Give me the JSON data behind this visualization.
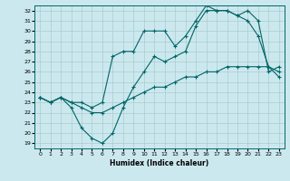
{
  "xlabel": "Humidex (Indice chaleur)",
  "bg_color": "#cce8ef",
  "grid_color": "#aacccc",
  "line_color": "#006666",
  "xlim": [
    -0.5,
    23.5
  ],
  "ylim": [
    18.5,
    32.5
  ],
  "xticks": [
    0,
    1,
    2,
    3,
    4,
    5,
    6,
    7,
    8,
    9,
    10,
    11,
    12,
    13,
    14,
    15,
    16,
    17,
    18,
    19,
    20,
    21,
    22,
    23
  ],
  "yticks": [
    19,
    20,
    21,
    22,
    23,
    24,
    25,
    26,
    27,
    28,
    29,
    30,
    31,
    32
  ],
  "series": [
    {
      "x": [
        0,
        1,
        2,
        3,
        4,
        5,
        6,
        7,
        8,
        9,
        10,
        11,
        12,
        13,
        14,
        15,
        16,
        17,
        18,
        19,
        20,
        21,
        22,
        23
      ],
      "y": [
        23.5,
        23.0,
        23.5,
        23.0,
        22.5,
        22.0,
        22.0,
        22.5,
        23.0,
        23.5,
        24.0,
        24.5,
        24.5,
        25.0,
        25.5,
        25.5,
        26.0,
        26.0,
        26.5,
        26.5,
        26.5,
        26.5,
        26.5,
        26.0
      ]
    },
    {
      "x": [
        0,
        1,
        2,
        3,
        4,
        5,
        6,
        7,
        8,
        9,
        10,
        11,
        12,
        13,
        14,
        15,
        16,
        17,
        18,
        19,
        20,
        21,
        22,
        23
      ],
      "y": [
        23.5,
        23.0,
        23.5,
        22.5,
        20.5,
        19.5,
        19.0,
        20.0,
        22.5,
        24.5,
        26.0,
        27.5,
        27.0,
        27.5,
        28.0,
        30.5,
        32.0,
        32.0,
        32.0,
        31.5,
        31.0,
        29.5,
        26.5,
        25.5
      ]
    },
    {
      "x": [
        0,
        1,
        2,
        3,
        4,
        5,
        6,
        7,
        8,
        9,
        10,
        11,
        12,
        13,
        14,
        15,
        16,
        17,
        18,
        19,
        20,
        21,
        22,
        23
      ],
      "y": [
        23.5,
        23.0,
        23.5,
        23.0,
        23.0,
        22.5,
        23.0,
        27.5,
        28.0,
        28.0,
        30.0,
        30.0,
        30.0,
        28.5,
        29.5,
        31.0,
        32.5,
        32.0,
        32.0,
        31.5,
        32.0,
        31.0,
        26.0,
        26.5
      ]
    }
  ]
}
